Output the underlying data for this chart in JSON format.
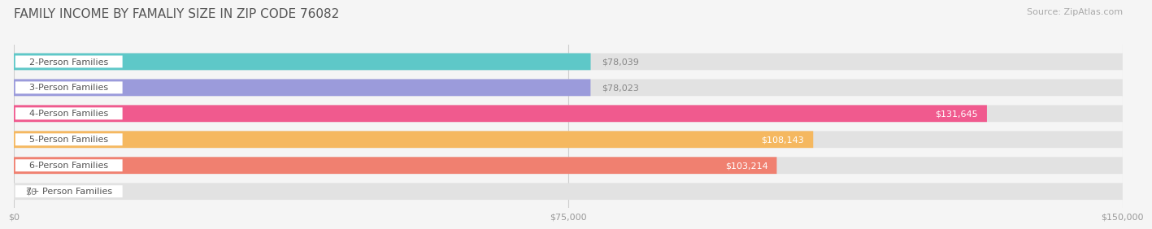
{
  "title": "FAMILY INCOME BY FAMALIY SIZE IN ZIP CODE 76082",
  "source": "Source: ZipAtlas.com",
  "categories": [
    "2-Person Families",
    "3-Person Families",
    "4-Person Families",
    "5-Person Families",
    "6-Person Families",
    "7+ Person Families"
  ],
  "values": [
    78039,
    78023,
    131645,
    108143,
    103214,
    0
  ],
  "bar_colors": [
    "#5ec8c8",
    "#9b9bdb",
    "#f05a8e",
    "#f5b860",
    "#f08070",
    "#a0bce0"
  ],
  "xlim": [
    0,
    150000
  ],
  "xticks": [
    0,
    75000,
    150000
  ],
  "xtick_labels": [
    "$0",
    "$75,000",
    "$150,000"
  ],
  "value_labels": [
    "$78,039",
    "$78,023",
    "$131,645",
    "$108,143",
    "$103,214",
    "$0"
  ],
  "label_inside": [
    false,
    false,
    true,
    true,
    true,
    false
  ],
  "title_fontsize": 11,
  "source_fontsize": 8,
  "bar_label_fontsize": 8,
  "category_fontsize": 8,
  "background_color": "#f5f5f5",
  "bar_bg_color": "#e2e2e2",
  "bar_height": 0.65,
  "rounding": 0.06
}
